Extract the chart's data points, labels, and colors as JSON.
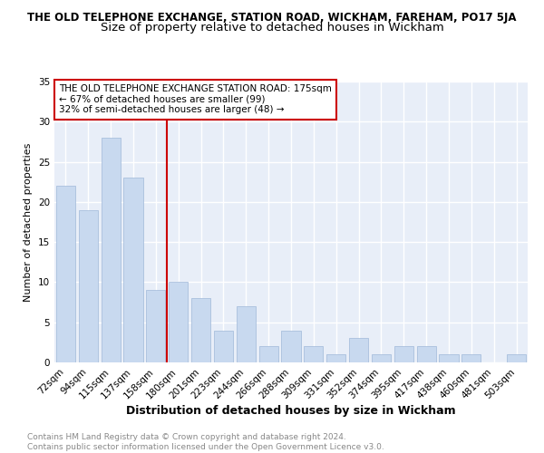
{
  "title": "THE OLD TELEPHONE EXCHANGE, STATION ROAD, WICKHAM, FAREHAM, PO17 5JA",
  "subtitle": "Size of property relative to detached houses in Wickham",
  "xlabel": "Distribution of detached houses by size in Wickham",
  "ylabel": "Number of detached properties",
  "categories": [
    "72sqm",
    "94sqm",
    "115sqm",
    "137sqm",
    "158sqm",
    "180sqm",
    "201sqm",
    "223sqm",
    "244sqm",
    "266sqm",
    "288sqm",
    "309sqm",
    "331sqm",
    "352sqm",
    "374sqm",
    "395sqm",
    "417sqm",
    "438sqm",
    "460sqm",
    "481sqm",
    "503sqm"
  ],
  "values": [
    22,
    19,
    28,
    23,
    9,
    10,
    8,
    4,
    7,
    2,
    4,
    2,
    1,
    3,
    1,
    2,
    2,
    1,
    1,
    0,
    1
  ],
  "bar_color": "#c8d9ef",
  "bar_edge_color": "#a0b8d8",
  "reference_line_color": "#cc0000",
  "annotation_line1": "THE OLD TELEPHONE EXCHANGE STATION ROAD: 175sqm",
  "annotation_line2": "← 67% of detached houses are smaller (99)",
  "annotation_line3": "32% of semi-detached houses are larger (48) →",
  "annotation_box_color": "#ffffff",
  "annotation_box_edge_color": "#cc0000",
  "ylim": [
    0,
    35
  ],
  "yticks": [
    0,
    5,
    10,
    15,
    20,
    25,
    30,
    35
  ],
  "footer_line1": "Contains HM Land Registry data © Crown copyright and database right 2024.",
  "footer_line2": "Contains public sector information licensed under the Open Government Licence v3.0.",
  "bg_color": "#ffffff",
  "plot_bg_color": "#e8eef8",
  "grid_color": "#ffffff",
  "title_fontsize": 8.5,
  "subtitle_fontsize": 9.5,
  "xlabel_fontsize": 9,
  "ylabel_fontsize": 8,
  "annotation_fontsize": 7.5,
  "tick_fontsize": 7.5,
  "footer_fontsize": 6.5,
  "ref_bar_index": 5
}
